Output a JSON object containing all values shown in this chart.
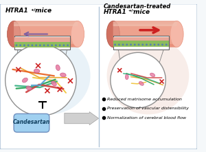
{
  "bg_color": "#f5f8fa",
  "border_color": "#b0c4d8",
  "left_title1": "HTRA1",
  "left_title_sup": "+/-",
  "left_title2": " mice",
  "right_title1": "Candesartan-treated",
  "right_title2": "HTRA1",
  "right_title_sup": "+/-",
  "right_title3": " mice",
  "bullet_points": [
    "Reduced matrisome accumulation",
    "Preservation of vascular distensibility",
    "Normalization of cerebral blood flow"
  ],
  "candesartan_label": "Candesartan",
  "vessel_salmon": "#e8907a",
  "vessel_inner": "#f5b8a8",
  "vessel_dark": "#d07060",
  "green_layer": "#8cbc5c",
  "pink_layer": "#e8a898",
  "blue_dot": "#5880b0",
  "purple_arrow": "#8060a0",
  "red_arrow": "#cc2020",
  "left_bg": "#d0e4f0",
  "right_bg": "#f0d8d0",
  "fiber_colors": [
    "#e8a020",
    "#f0c030",
    "#20a050",
    "#30b080",
    "#d04040",
    "#50a0d0",
    "#e86020"
  ],
  "blob_color": "#e878a0",
  "blob_edge": "#c05080",
  "pill_face": "#a0d0f0",
  "pill_edge": "#7090c0",
  "arrow_face": "#d0d0d0",
  "arrow_edge": "#a0a0a0"
}
